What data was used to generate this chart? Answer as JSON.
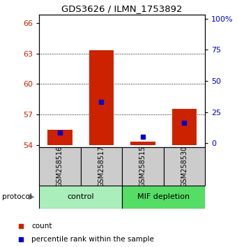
{
  "title": "GDS3626 / ILMN_1753892",
  "samples": [
    "GSM258516",
    "GSM258517",
    "GSM258515",
    "GSM258530"
  ],
  "groups": [
    "control",
    "control",
    "MIF depletion",
    "MIF depletion"
  ],
  "red_values": [
    55.5,
    63.35,
    54.35,
    57.55
  ],
  "blue_values": [
    55.25,
    58.25,
    54.82,
    56.15
  ],
  "red_base": 54.0,
  "ylim_left": [
    53.8,
    66.8
  ],
  "left_ticks": [
    54,
    57,
    60,
    63,
    66
  ],
  "right_ticks": [
    0,
    25,
    50,
    75,
    100
  ],
  "right_tick_labels": [
    "0",
    "25",
    "50",
    "75",
    "100%"
  ],
  "dotted_lines": [
    57,
    60,
    63
  ],
  "bar_color": "#CC2200",
  "blue_color": "#0000CC",
  "bar_width": 0.6,
  "control_color": "#AAEEBB",
  "mif_color": "#55DD66",
  "left_label_color": "#CC2200",
  "right_label_color": "#0000CC",
  "sample_box_color": "#CCCCCC",
  "protocol_arrow_color": "#888888"
}
